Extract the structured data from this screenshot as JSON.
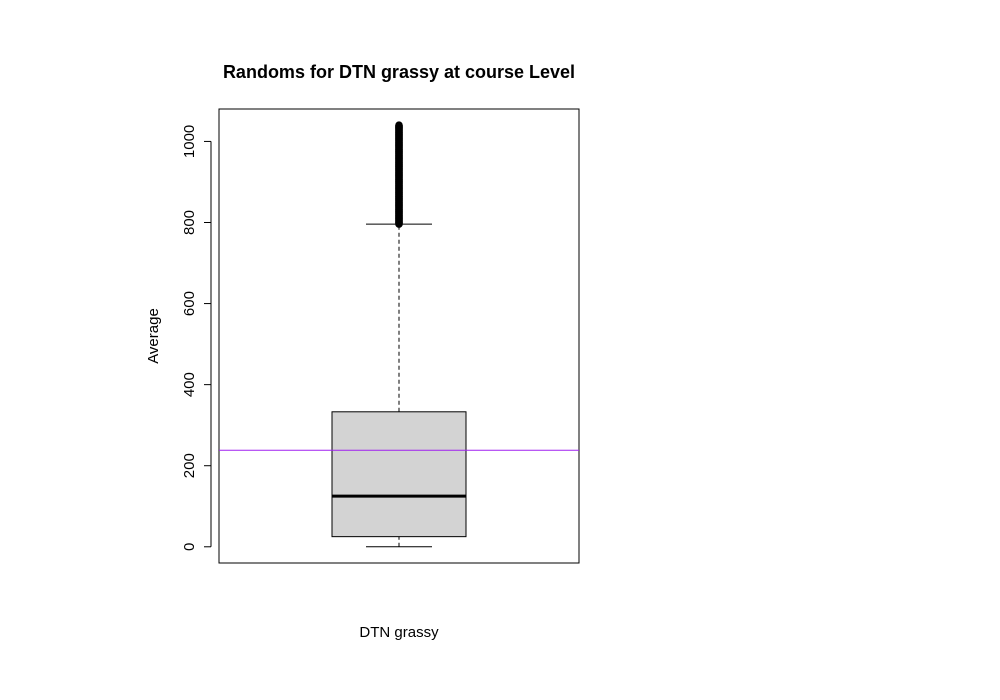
{
  "chart_data": {
    "type": "box",
    "title": "Randoms for DTN grassy at course Level",
    "xlabel": "DTN grassy",
    "ylabel": "Average",
    "categories": [
      "DTN grassy"
    ],
    "ylim": [
      -40,
      1080
    ],
    "y_ticks": [
      0,
      200,
      400,
      600,
      800,
      1000
    ],
    "y_tick_labels": [
      "0",
      "200",
      "400",
      "600",
      "800",
      "1000"
    ],
    "grid": false,
    "legend": "none",
    "box": {
      "min": 0,
      "q1": 25,
      "median": 125,
      "q3": 333,
      "whisker_low": 0,
      "whisker_high": 796,
      "outliers_from": 796,
      "outliers_to": 1040
    },
    "reference_line": {
      "y": 238
    },
    "colors": {
      "box_fill": "#d3d3d3",
      "reference_line": "#a020f0",
      "stroke": "#000000"
    }
  }
}
